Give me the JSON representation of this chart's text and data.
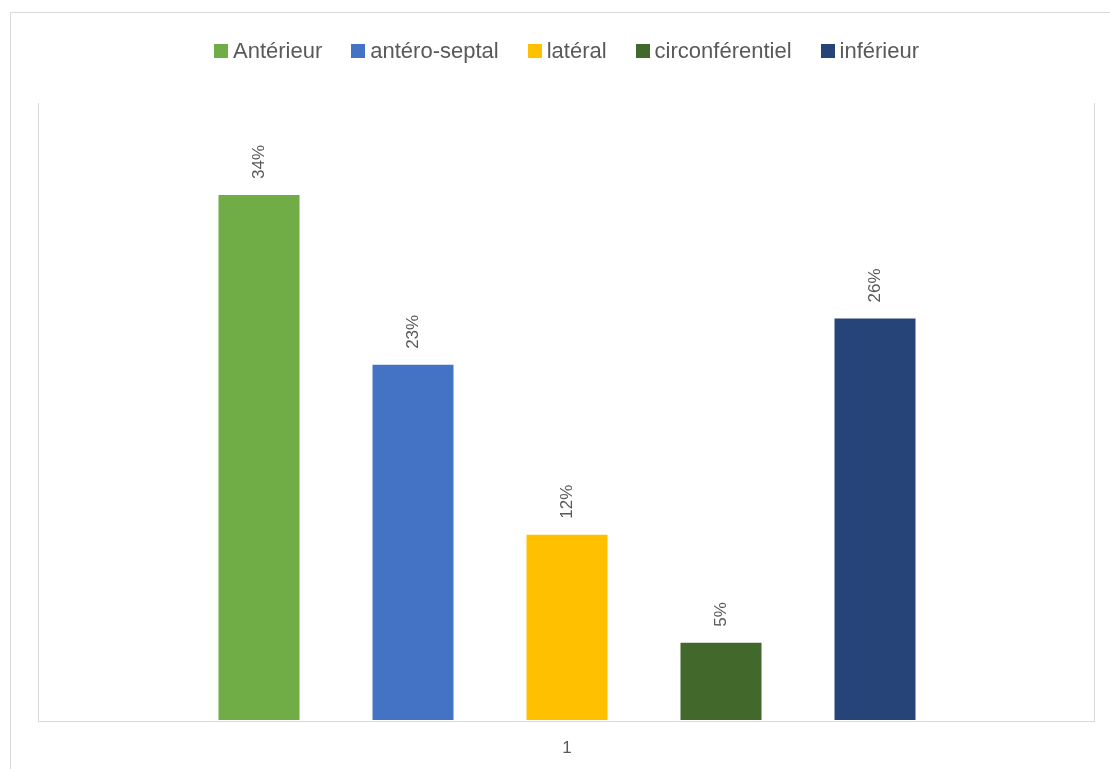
{
  "chart_data": {
    "type": "bar",
    "stacked": true,
    "categories": [
      null,
      null,
      "1",
      null,
      null
    ],
    "series": [
      {
        "name": "Antérieur",
        "color": "#70ad47",
        "values": [
          34,
          null,
          null,
          null,
          null
        ],
        "value_labels": [
          "34%",
          null,
          null,
          null,
          null
        ]
      },
      {
        "name": "antéro-septal",
        "color": "#4472c4",
        "values": [
          null,
          23,
          null,
          null,
          null
        ],
        "value_labels": [
          null,
          "23%",
          null,
          null,
          null
        ]
      },
      {
        "name": "latéral",
        "color": "#ffc000",
        "values": [
          null,
          null,
          12,
          null,
          null
        ],
        "value_labels": [
          null,
          null,
          "12%",
          null,
          null
        ]
      },
      {
        "name": "circonférentiel",
        "color": "#43682b",
        "values": [
          null,
          null,
          null,
          5,
          null
        ],
        "value_labels": [
          null,
          null,
          null,
          "5%",
          null
        ]
      },
      {
        "name": "inférieur",
        "color": "#264478",
        "values": [
          null,
          null,
          null,
          null,
          26
        ],
        "value_labels": [
          null,
          null,
          null,
          null,
          "26%"
        ]
      }
    ],
    "tick_labels": "x",
    "legend": "top"
  }
}
